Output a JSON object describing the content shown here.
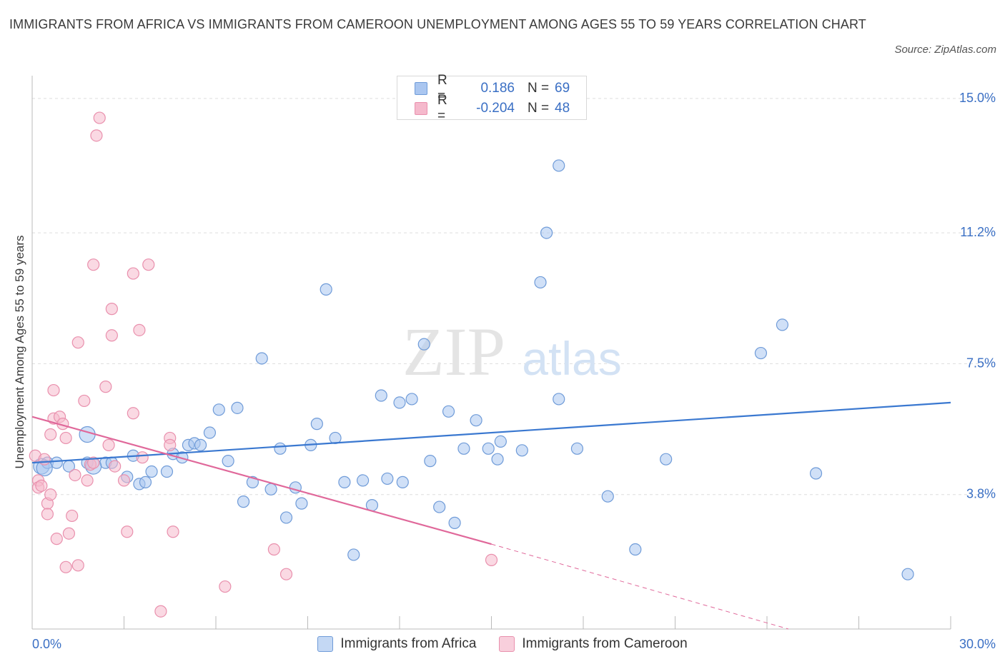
{
  "title": "IMMIGRANTS FROM AFRICA VS IMMIGRANTS FROM CAMEROON UNEMPLOYMENT AMONG AGES 55 TO 59 YEARS CORRELATION CHART",
  "source": "Source: ZipAtlas.com",
  "watermark": {
    "zip": "ZIP",
    "atlas": "atlas"
  },
  "legend": {
    "rows": [
      {
        "r_label": "R =",
        "r_value": "0.186",
        "n_label": "N =",
        "n_value": "69"
      },
      {
        "r_label": "R =",
        "r_value": "-0.204",
        "n_label": "N =",
        "n_value": "48"
      }
    ]
  },
  "colors": {
    "africa_fill": "#aac6f0",
    "africa_stroke": "#6f9bd8",
    "africa_line": "#3a78d0",
    "cameroon_fill": "#f5b9cc",
    "cameroon_stroke": "#e990ad",
    "cameroon_line": "#e0689a",
    "tick_text": "#3a6fc4",
    "grid": "#dddddd"
  },
  "chart_data": {
    "type": "scatter",
    "title": "IMMIGRANTS FROM AFRICA VS IMMIGRANTS FROM CAMEROON UNEMPLOYMENT AMONG AGES 55 TO 59 YEARS CORRELATION CHART",
    "xlabel": "",
    "ylabel": "Unemployment Among Ages 55 to 59 years",
    "xlim": [
      0,
      30
    ],
    "ylim": [
      0,
      15.4
    ],
    "x_tick_labels": [
      {
        "value": 0,
        "label": "0.0%"
      },
      {
        "value": 30,
        "label": "30.0%"
      }
    ],
    "y_tick_labels": [
      {
        "value": 3.8,
        "label": "3.8%"
      },
      {
        "value": 7.5,
        "label": "7.5%"
      },
      {
        "value": 11.2,
        "label": "11.2%"
      },
      {
        "value": 15.0,
        "label": "15.0%"
      }
    ],
    "legend_position": "bottom",
    "series": [
      {
        "name": "Immigrants from Africa",
        "points": [
          [
            0.3,
            4.6
          ],
          [
            0.5,
            4.7
          ],
          [
            0.8,
            4.7
          ],
          [
            1.2,
            4.6
          ],
          [
            1.8,
            4.7
          ],
          [
            2.4,
            4.7
          ],
          [
            1.8,
            5.5
          ],
          [
            2.6,
            4.7
          ],
          [
            3.1,
            4.3
          ],
          [
            3.3,
            4.9
          ],
          [
            3.5,
            4.1
          ],
          [
            3.7,
            4.15
          ],
          [
            3.9,
            4.45
          ],
          [
            4.4,
            4.45
          ],
          [
            4.6,
            4.95
          ],
          [
            4.9,
            4.85
          ],
          [
            5.1,
            5.2
          ],
          [
            5.3,
            5.25
          ],
          [
            5.5,
            5.2
          ],
          [
            5.8,
            5.55
          ],
          [
            6.1,
            6.2
          ],
          [
            6.4,
            4.75
          ],
          [
            6.7,
            6.25
          ],
          [
            6.9,
            3.6
          ],
          [
            7.2,
            4.15
          ],
          [
            7.5,
            7.65
          ],
          [
            7.8,
            3.95
          ],
          [
            8.1,
            5.1
          ],
          [
            8.3,
            3.15
          ],
          [
            8.6,
            4.0
          ],
          [
            8.8,
            3.55
          ],
          [
            9.1,
            5.2
          ],
          [
            9.3,
            5.8
          ],
          [
            9.6,
            9.6
          ],
          [
            9.9,
            5.4
          ],
          [
            10.2,
            4.15
          ],
          [
            10.5,
            2.1
          ],
          [
            10.8,
            4.2
          ],
          [
            11.1,
            3.5
          ],
          [
            11.4,
            6.6
          ],
          [
            11.6,
            4.25
          ],
          [
            12.0,
            6.4
          ],
          [
            12.1,
            4.15
          ],
          [
            12.4,
            6.5
          ],
          [
            12.8,
            8.05
          ],
          [
            13.0,
            4.75
          ],
          [
            13.3,
            3.45
          ],
          [
            13.6,
            6.15
          ],
          [
            13.8,
            3.0
          ],
          [
            14.1,
            5.1
          ],
          [
            14.5,
            5.9
          ],
          [
            14.9,
            5.1
          ],
          [
            15.2,
            4.8
          ],
          [
            15.3,
            5.3
          ],
          [
            16.0,
            5.05
          ],
          [
            16.6,
            9.8
          ],
          [
            16.8,
            11.2
          ],
          [
            17.2,
            13.1
          ],
          [
            17.2,
            6.5
          ],
          [
            17.8,
            5.1
          ],
          [
            18.8,
            3.75
          ],
          [
            19.7,
            2.25
          ],
          [
            20.7,
            4.8
          ],
          [
            23.8,
            7.8
          ],
          [
            24.5,
            8.6
          ],
          [
            25.6,
            4.4
          ],
          [
            28.6,
            1.55
          ],
          [
            0.4,
            4.55
          ],
          [
            2.0,
            4.6
          ]
        ]
      },
      {
        "name": "Immigrants from Cameroon",
        "points": [
          [
            0.1,
            4.9
          ],
          [
            0.2,
            4.2
          ],
          [
            0.2,
            4.0
          ],
          [
            0.3,
            4.05
          ],
          [
            0.4,
            4.8
          ],
          [
            0.5,
            3.55
          ],
          [
            0.5,
            3.25
          ],
          [
            0.6,
            3.8
          ],
          [
            0.6,
            5.5
          ],
          [
            0.7,
            6.75
          ],
          [
            0.7,
            5.95
          ],
          [
            0.8,
            2.55
          ],
          [
            0.9,
            6.0
          ],
          [
            1.0,
            5.8
          ],
          [
            1.1,
            1.75
          ],
          [
            1.1,
            5.4
          ],
          [
            1.2,
            2.7
          ],
          [
            1.3,
            3.2
          ],
          [
            1.4,
            4.35
          ],
          [
            1.5,
            8.1
          ],
          [
            1.5,
            1.8
          ],
          [
            1.7,
            6.45
          ],
          [
            1.8,
            4.2
          ],
          [
            1.9,
            4.65
          ],
          [
            2.0,
            10.3
          ],
          [
            2.1,
            13.95
          ],
          [
            2.2,
            14.45
          ],
          [
            2.4,
            6.85
          ],
          [
            2.5,
            5.2
          ],
          [
            2.6,
            8.3
          ],
          [
            2.6,
            9.05
          ],
          [
            2.7,
            4.6
          ],
          [
            3.0,
            4.2
          ],
          [
            3.1,
            2.75
          ],
          [
            3.3,
            6.1
          ],
          [
            3.3,
            10.05
          ],
          [
            3.5,
            8.45
          ],
          [
            3.6,
            4.85
          ],
          [
            3.8,
            10.3
          ],
          [
            4.2,
            0.5
          ],
          [
            4.5,
            5.4
          ],
          [
            4.5,
            5.2
          ],
          [
            4.6,
            2.75
          ],
          [
            6.3,
            1.2
          ],
          [
            7.9,
            2.25
          ],
          [
            8.3,
            1.55
          ],
          [
            15.0,
            1.95
          ],
          [
            2.0,
            4.7
          ]
        ]
      }
    ],
    "trendlines": [
      {
        "series": "Immigrants from Africa",
        "x_start": 0,
        "y_start": 4.7,
        "x_end": 30,
        "y_end": 6.4,
        "style": "solid"
      },
      {
        "series": "Immigrants from Cameroon",
        "x_start": 0,
        "y_start": 6.0,
        "x_end": 15.0,
        "y_end": 2.4,
        "style": "solid"
      },
      {
        "series": "Immigrants from Cameroon",
        "x_start": 15.0,
        "y_start": 2.4,
        "x_end": 24.7,
        "y_end": 0.0,
        "style": "dashed"
      }
    ]
  }
}
